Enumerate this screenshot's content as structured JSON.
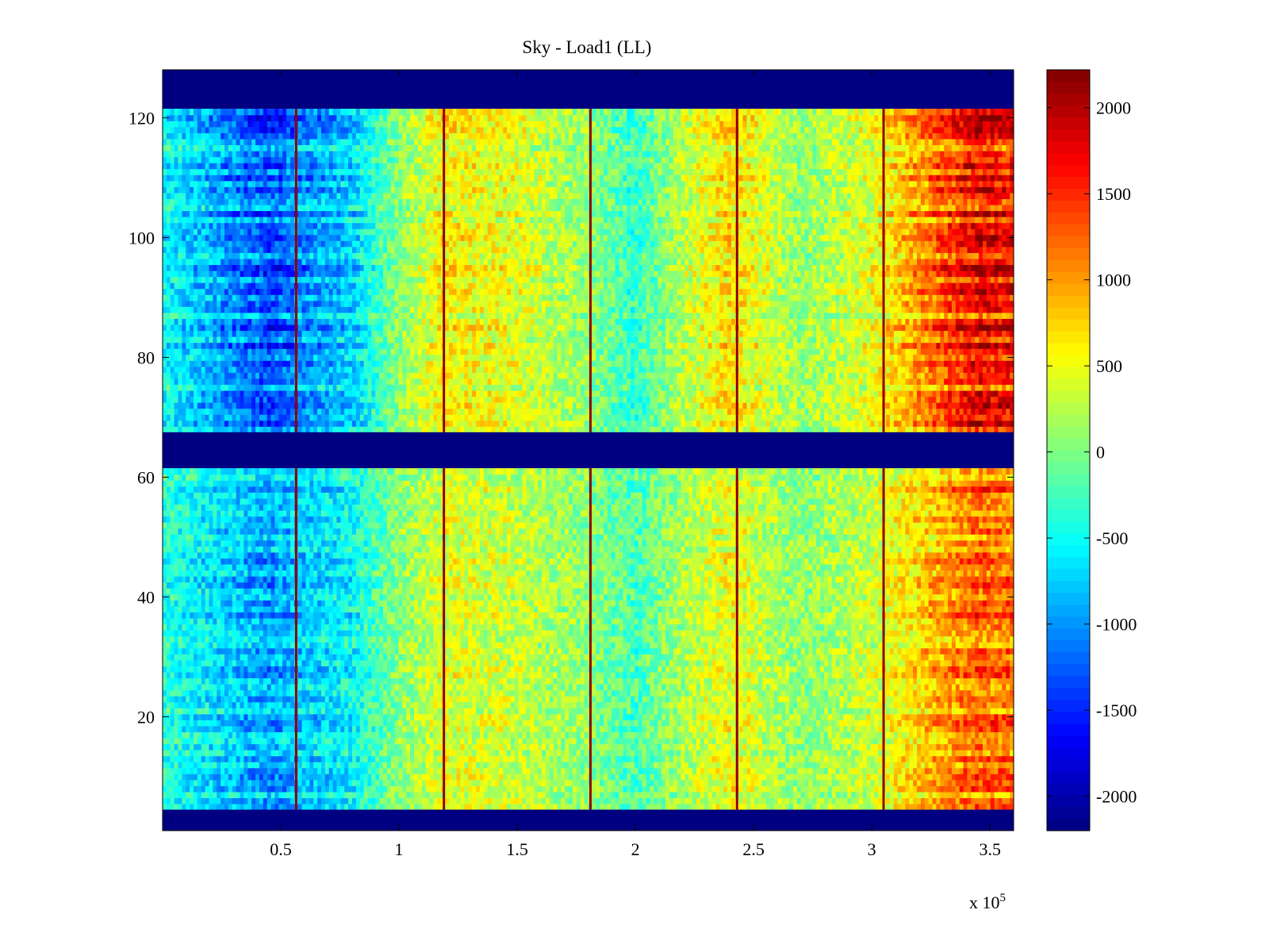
{
  "chart_data": {
    "type": "heatmap",
    "title": "Sky - Load1 (LL)",
    "xlabel": "",
    "ylabel": "",
    "x_exponent_label": "x 10",
    "x_exponent_power": "5",
    "xlim": [
      0,
      3.6
    ],
    "ylim": [
      1,
      128
    ],
    "xticks": [
      0.5,
      1,
      1.5,
      2,
      2.5,
      3,
      3.5
    ],
    "xtick_labels": [
      "0.5",
      "1",
      "1.5",
      "2",
      "2.5",
      "3",
      "3.5"
    ],
    "yticks": [
      20,
      40,
      60,
      80,
      100,
      120
    ],
    "ytick_labels": [
      "20",
      "40",
      "60",
      "80",
      "100",
      "120"
    ],
    "colorbar": {
      "colormap": "jet",
      "clim": [
        -2200,
        2220
      ],
      "ticks": [
        2000,
        1500,
        1000,
        500,
        0,
        -500,
        -1000,
        -1500,
        -2000
      ],
      "tick_labels": [
        "2000",
        "1500",
        "1000",
        "500",
        "0",
        "-500",
        "-1000",
        "-1500",
        "-2000"
      ]
    },
    "masked_rows": [
      [
        1,
        4
      ],
      [
        62,
        67
      ],
      [
        122,
        128
      ]
    ],
    "masked_value": -2200,
    "spike_columns_x": [
      0.565,
      1.19,
      1.81,
      2.43,
      3.05
    ],
    "spike_value": 2150,
    "base_profile": {
      "x": [
        0,
        0.2,
        0.45,
        0.6,
        0.8,
        1.0,
        1.2,
        1.5,
        1.8,
        2.0,
        2.2,
        2.4,
        2.7,
        3.0,
        3.2,
        3.45,
        3.6
      ],
      "value": [
        -450,
        -750,
        -1150,
        -900,
        -650,
        80,
        520,
        380,
        80,
        -280,
        230,
        620,
        80,
        400,
        900,
        1500,
        1400
      ]
    },
    "row_strength": {
      "upper_band": 1.1,
      "lower_band": 0.8
    }
  }
}
